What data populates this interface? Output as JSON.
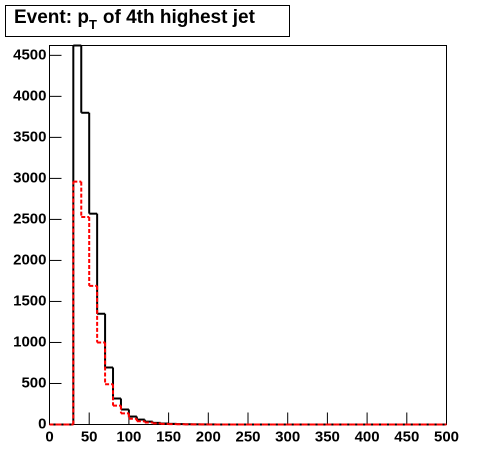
{
  "chart_data": {
    "type": "histogram",
    "title": "Event: p",
    "title_subscript": "T",
    "title_rest": "of 4th highest jet",
    "bins": [
      0,
      10,
      20,
      30,
      40,
      50,
      60,
      70,
      80,
      90,
      100,
      110,
      120,
      130,
      140,
      150,
      160,
      170,
      180,
      190,
      200,
      210,
      220,
      230,
      240,
      250,
      260,
      270,
      280,
      290,
      300,
      310,
      320,
      330,
      340,
      350,
      360,
      370,
      380,
      390,
      400,
      410,
      420,
      430,
      440,
      450,
      460,
      470,
      480,
      490,
      500
    ],
    "series": [
      {
        "color": "#000000",
        "dash": "none",
        "values": [
          0,
          0,
          0,
          4620,
          3800,
          2570,
          1350,
          695,
          317,
          183,
          97,
          60,
          35,
          20,
          12,
          8,
          5,
          3,
          2,
          1,
          1,
          0,
          0,
          0,
          0,
          0,
          0,
          0,
          0,
          0,
          0,
          0,
          0,
          0,
          0,
          0,
          0,
          0,
          0,
          0,
          0,
          0,
          0,
          0,
          0,
          0,
          0,
          0,
          0,
          0
        ]
      },
      {
        "color": "#ff0000",
        "dash": "4,2",
        "values": [
          0,
          0,
          0,
          2960,
          2530,
          1690,
          1000,
          490,
          230,
          135,
          70,
          40,
          25,
          14,
          8,
          5,
          3,
          2,
          1,
          1,
          0,
          0,
          0,
          0,
          0,
          0,
          0,
          0,
          0,
          0,
          0,
          0,
          0,
          0,
          0,
          0,
          0,
          0,
          0,
          0,
          0,
          0,
          0,
          0,
          0,
          0,
          0,
          0,
          0,
          0
        ]
      }
    ],
    "xlim": [
      0,
      500
    ],
    "ylim": [
      0,
      4620
    ],
    "xticks": [
      0,
      50,
      100,
      150,
      200,
      250,
      300,
      350,
      400,
      450,
      500
    ],
    "yticks": [
      0,
      500,
      1000,
      1500,
      2000,
      2500,
      3000,
      3500,
      4000,
      4500
    ]
  }
}
